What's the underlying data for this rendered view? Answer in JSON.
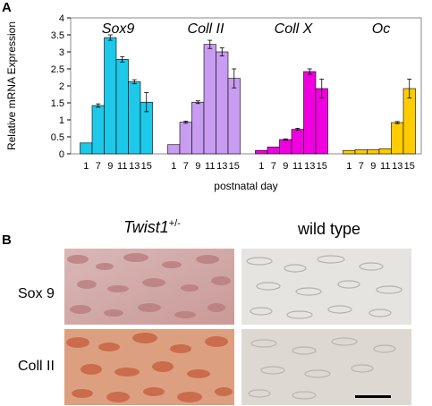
{
  "panels": {
    "a": {
      "label": "A"
    },
    "b": {
      "label": "B",
      "columns": [
        {
          "title_main": "Twist1",
          "title_sup": "+/-"
        },
        {
          "title_main": "wild type",
          "title_sup": ""
        }
      ],
      "rows": [
        "Sox 9",
        "Coll II"
      ]
    }
  },
  "chart_data": {
    "type": "bar",
    "ylabel": "Relative mRNA Expression",
    "xlabel": "postnatal day",
    "ylim": [
      0,
      4
    ],
    "yticks": [
      "0",
      "0.5",
      "1",
      "1.5",
      "2",
      "2.5",
      "3",
      "3.5",
      "4"
    ],
    "categories": [
      "1",
      "7",
      "9",
      "11",
      "13",
      "15"
    ],
    "grid": false,
    "groups": [
      {
        "name": "Sox9",
        "color": "#1ec8e8",
        "values": [
          0.32,
          1.42,
          3.42,
          2.78,
          2.12,
          1.52
        ],
        "errors": [
          0.0,
          0.05,
          0.08,
          0.08,
          0.06,
          0.28
        ]
      },
      {
        "name": "Coll II",
        "color": "#c89cf0",
        "values": [
          0.27,
          0.93,
          1.52,
          3.22,
          3.0,
          2.22
        ],
        "errors": [
          0.0,
          0.03,
          0.04,
          0.12,
          0.12,
          0.28
        ]
      },
      {
        "name": "Coll X",
        "color": "#f000e0",
        "values": [
          0.1,
          0.2,
          0.42,
          0.72,
          2.42,
          1.92
        ],
        "errors": [
          0.0,
          0.0,
          0.02,
          0.03,
          0.08,
          0.28
        ]
      },
      {
        "name": "Oc",
        "color": "#ffcc00",
        "values": [
          0.1,
          0.12,
          0.12,
          0.15,
          0.92,
          1.92
        ],
        "errors": [
          0.0,
          0.0,
          0.0,
          0.0,
          0.03,
          0.28
        ]
      }
    ]
  }
}
